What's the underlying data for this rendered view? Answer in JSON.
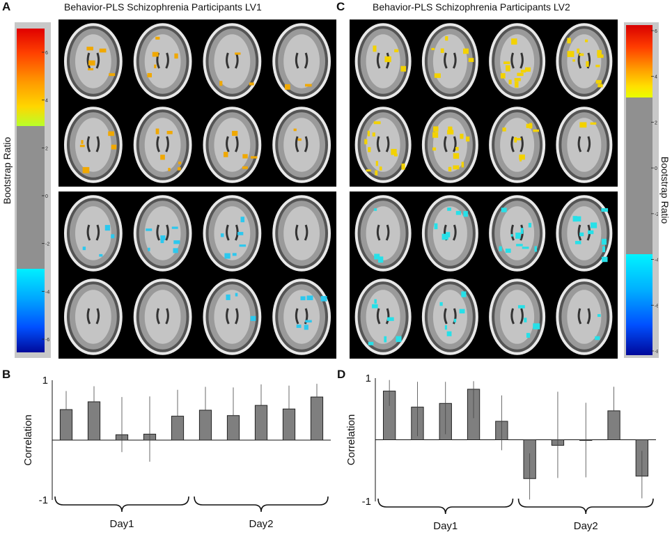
{
  "panels": {
    "A": {
      "letter": "A",
      "title": "Behavior-PLS Schizophrenia Participants LV1"
    },
    "B": {
      "letter": "B"
    },
    "C": {
      "letter": "C",
      "title": "Behavior-PLS Schizophrenia Participants LV2"
    },
    "D": {
      "letter": "D"
    }
  },
  "colorbars": {
    "left": {
      "label": "Bootstrap Ratio",
      "ticks": [
        "6",
        "4",
        "2",
        "0",
        "-2",
        "-4",
        "-6"
      ]
    },
    "right": {
      "label": "Bootstrap Ratio",
      "ticks": [
        "6",
        "4",
        "2",
        "0",
        "-2",
        "-4",
        "-6",
        "-8"
      ]
    }
  },
  "colors": {
    "bar": "#7f7f7f",
    "positive_map": "#f5c400",
    "negative_map": "#25d9e8",
    "colorbar_gray": "#909090"
  },
  "chart_data": [
    {
      "type": "bar",
      "panel": "B",
      "ylabel": "Correlation",
      "ylim": [
        -1,
        1
      ],
      "yticks": [
        "1",
        "-1"
      ],
      "groups": [
        {
          "label": "Day1",
          "bars": [
            1,
            5
          ]
        },
        {
          "label": "Day2",
          "bars": [
            6,
            10
          ]
        }
      ],
      "values": [
        0.51,
        0.64,
        0.09,
        0.1,
        0.4,
        0.5,
        0.41,
        0.58,
        0.52,
        0.72
      ],
      "error_high": [
        0.82,
        0.9,
        0.72,
        0.73,
        0.84,
        0.89,
        0.88,
        0.93,
        0.91,
        0.94
      ],
      "error_low": [
        0.51,
        0.64,
        -0.2,
        -0.36,
        0.4,
        0.5,
        0.41,
        0.58,
        0.52,
        0.72
      ]
    },
    {
      "type": "bar",
      "panel": "D",
      "ylabel": "Correlation",
      "ylim": [
        -1,
        1
      ],
      "yticks": [
        "1",
        "-1"
      ],
      "groups": [
        {
          "label": "Day1",
          "bars": [
            1,
            5
          ]
        },
        {
          "label": "Day2",
          "bars": [
            6,
            10
          ]
        }
      ],
      "values": [
        0.79,
        0.53,
        0.59,
        0.82,
        0.3,
        -0.63,
        -0.09,
        -0.01,
        0.47,
        -0.59
      ],
      "error_high": [
        0.97,
        0.94,
        0.94,
        0.95,
        0.72,
        -0.22,
        0.78,
        0.6,
        0.86,
        -0.18
      ],
      "error_low": [
        0.55,
        0.06,
        0.09,
        0.35,
        -0.17,
        -0.97,
        -0.62,
        -0.61,
        0.47,
        -0.95
      ]
    }
  ]
}
